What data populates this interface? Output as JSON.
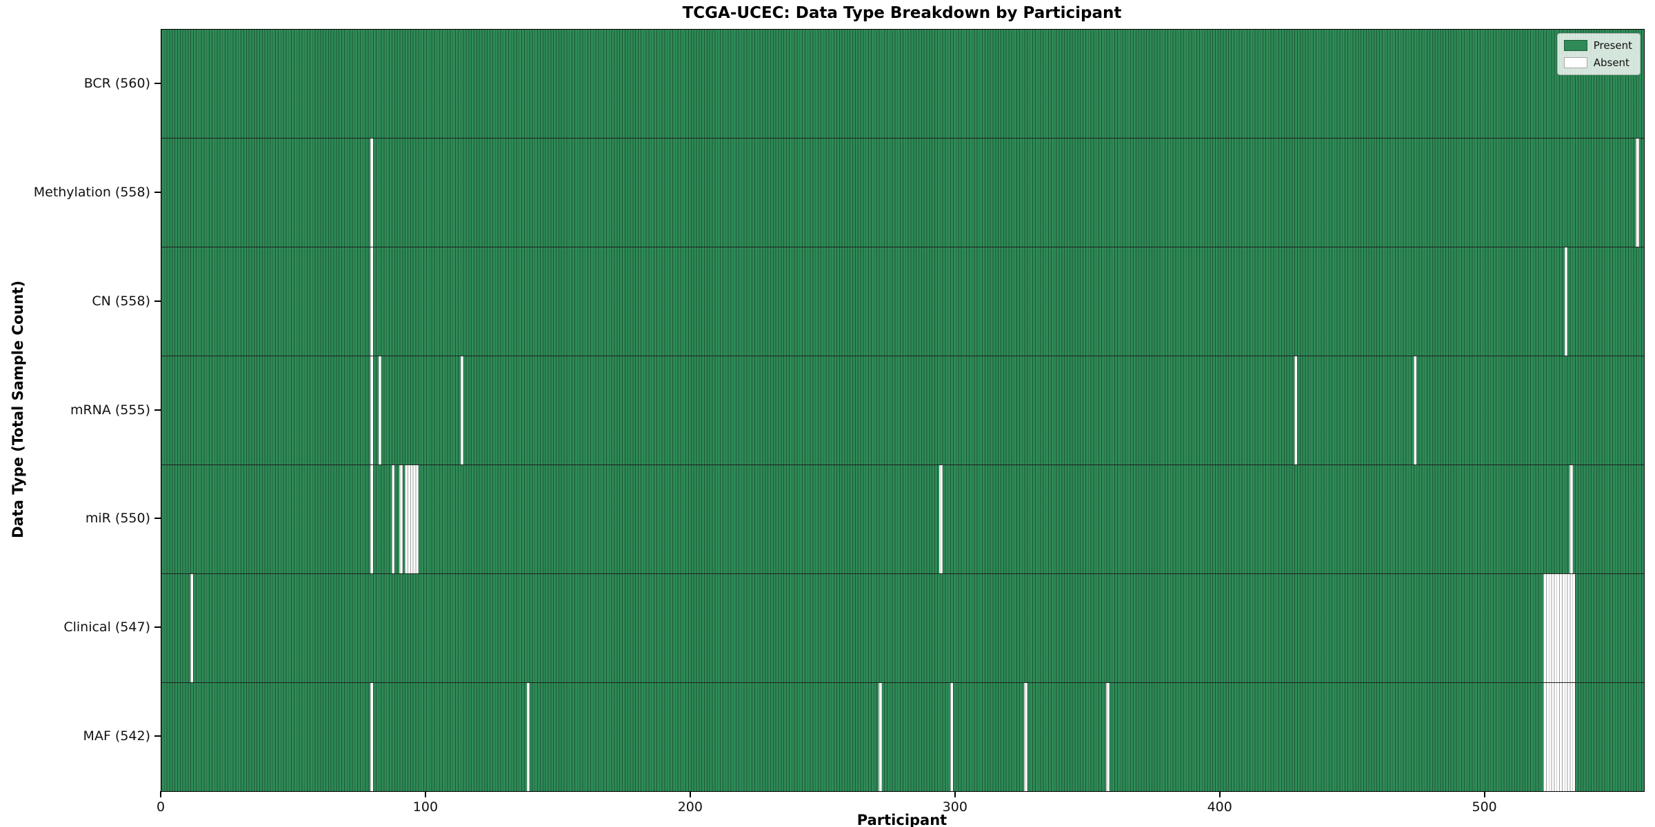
{
  "title": "TCGA-UCEC: Data Type Breakdown by Participant",
  "xlabel": "Participant",
  "ylabel": "Data Type (Total Sample Count)",
  "legend": {
    "present_label": "Present",
    "absent_label": "Absent"
  },
  "colors": {
    "present": "#2e8b57",
    "absent": "#ffffff"
  },
  "chart_data": {
    "type": "heatmap",
    "title": "TCGA-UCEC: Data Type Breakdown by Participant",
    "xlabel": "Participant",
    "ylabel": "Data Type (Total Sample Count)",
    "legend": [
      "Present",
      "Absent"
    ],
    "legend_position": "upper right",
    "grid": false,
    "n_participants": 560,
    "x_range": [
      0,
      560
    ],
    "x_ticks": [
      0,
      100,
      200,
      300,
      400,
      500
    ],
    "rows": [
      {
        "label": "BCR",
        "count": 560,
        "display": "BCR (560)",
        "absent_indices": []
      },
      {
        "label": "Methylation",
        "count": 558,
        "display": "Methylation (558)",
        "absent_indices": [
          79,
          557
        ]
      },
      {
        "label": "CN",
        "count": 558,
        "display": "CN (558)",
        "absent_indices": [
          79,
          530
        ]
      },
      {
        "label": "mRNA",
        "count": 555,
        "display": "mRNA (555)",
        "absent_indices": [
          79,
          82,
          113,
          428,
          473
        ]
      },
      {
        "label": "miR",
        "count": 550,
        "display": "miR (550)",
        "absent_indices": [
          79,
          87,
          90,
          92,
          93,
          94,
          95,
          96,
          294,
          532
        ]
      },
      {
        "label": "Clinical",
        "count": 547,
        "display": "Clinical (547)",
        "absent_indices": [
          11,
          522,
          523,
          524,
          525,
          526,
          527,
          528,
          529,
          530,
          531,
          532,
          533
        ]
      },
      {
        "label": "MAF",
        "count": 542,
        "display": "MAF (542)",
        "absent_indices": [
          79,
          138,
          271,
          298,
          326,
          357,
          522,
          523,
          524,
          525,
          526,
          527,
          528,
          529,
          530,
          531,
          532,
          533
        ]
      }
    ]
  }
}
